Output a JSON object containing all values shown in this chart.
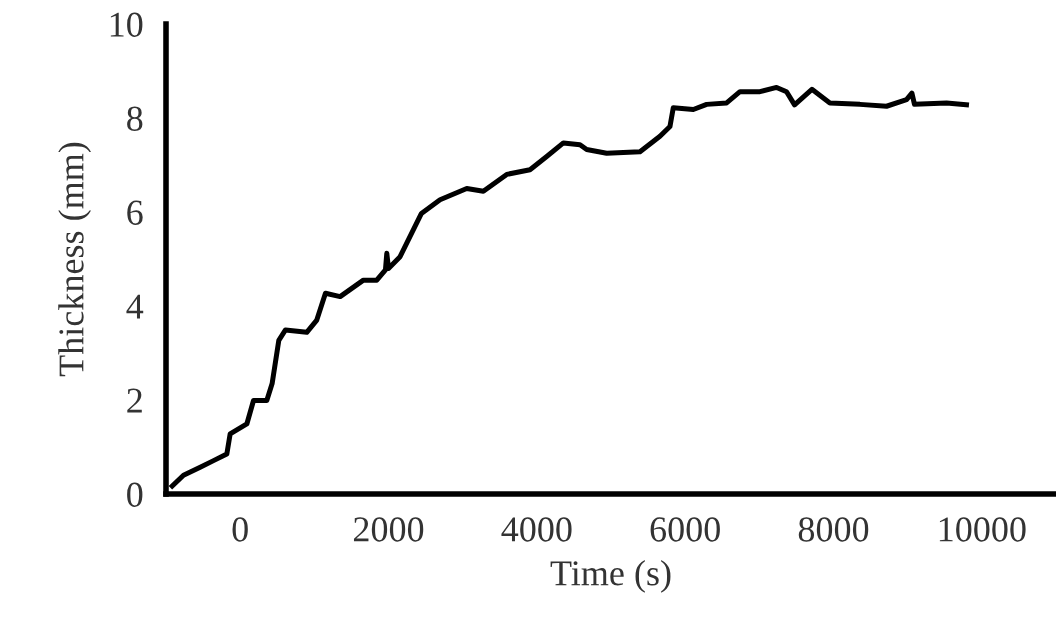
{
  "chart_data": {
    "type": "line",
    "xlabel": "Time (s)",
    "ylabel": "Thickness (mm)",
    "xlim": [
      -1000,
      11000
    ],
    "xticks": [
      0,
      2000,
      4000,
      6000,
      8000,
      10000
    ],
    "ylim": [
      0,
      10
    ],
    "yticks": [
      0,
      2,
      4,
      6,
      8,
      10
    ],
    "grid": false,
    "legend": false,
    "marker": "none",
    "line_style": "solid",
    "series": [
      {
        "color": "#000000",
        "x": [
          -916,
          -764,
          -539,
          -359,
          -180,
          -135,
          90,
          180,
          359,
          431,
          521,
          611,
          898,
          1033,
          1150,
          1348,
          1662,
          1842,
          1959,
          1977,
          2000,
          2156,
          2444,
          2695,
          3055,
          3279,
          3594,
          3908,
          4133,
          4358,
          4582,
          4672,
          4942,
          5391,
          5660,
          5795,
          5840,
          6110,
          6290,
          6559,
          6739,
          7008,
          7233,
          7367,
          7475,
          7709,
          7951,
          8356,
          8715,
          8985,
          9057,
          9092,
          9524,
          9793
        ],
        "values": [
          0.17,
          0.4,
          0.57,
          0.71,
          0.85,
          1.28,
          1.49,
          1.99,
          1.99,
          2.35,
          3.27,
          3.49,
          3.44,
          3.7,
          4.27,
          4.2,
          4.55,
          4.55,
          4.77,
          5.12,
          4.8,
          5.05,
          5.97,
          6.26,
          6.5,
          6.44,
          6.8,
          6.9,
          7.18,
          7.47,
          7.43,
          7.33,
          7.25,
          7.28,
          7.61,
          7.82,
          8.22,
          8.18,
          8.29,
          8.32,
          8.56,
          8.56,
          8.65,
          8.56,
          8.28,
          8.61,
          8.32,
          8.29,
          8.25,
          8.39,
          8.53,
          8.29,
          8.32,
          8.28
        ]
      }
    ]
  }
}
